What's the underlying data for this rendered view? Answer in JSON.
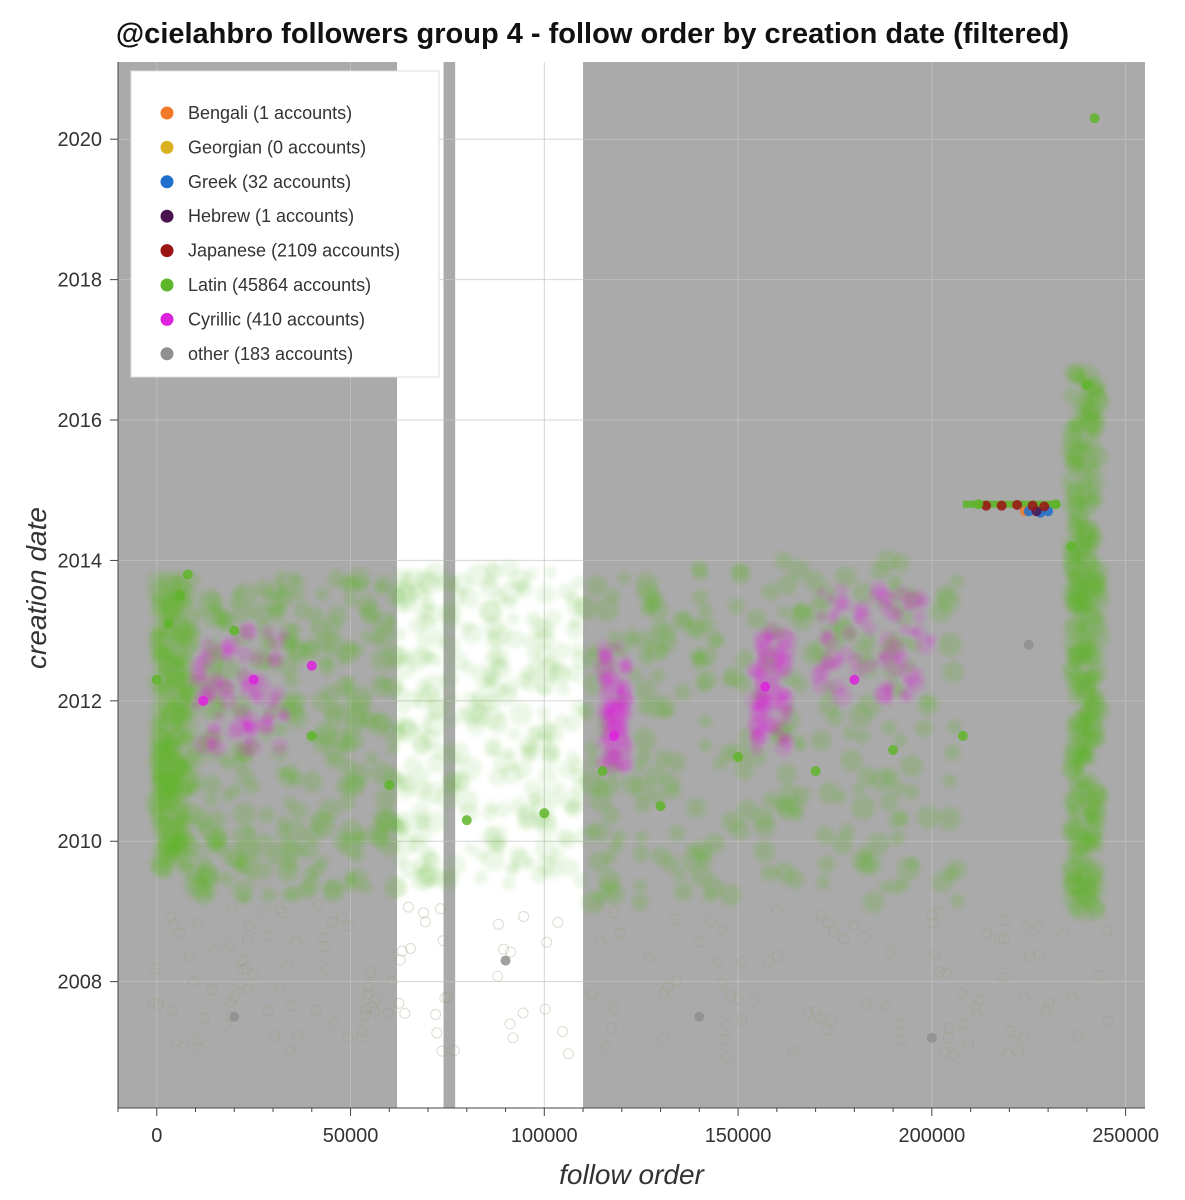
{
  "chart_data": {
    "type": "scatter",
    "title": "@cielahbro followers group 4 - follow order by creation date (filtered)",
    "xlabel": "follow order",
    "ylabel": "creation date",
    "xlim": [
      -10000,
      255000
    ],
    "ylim": [
      2006.2,
      2021.1
    ],
    "x_ticks": [
      0,
      50000,
      100000,
      150000,
      200000,
      250000
    ],
    "y_ticks": [
      2008,
      2010,
      2012,
      2014,
      2016,
      2018,
      2020
    ],
    "grid": true,
    "legend_position": "top-left",
    "background_color": "#aaaaaa",
    "white_bands": [
      [
        62000,
        74000
      ],
      [
        77000,
        110000
      ]
    ],
    "series": [
      {
        "name": "Bengali (1 accounts)",
        "color": "#f07a2a",
        "x": [
          224000
        ],
        "y": [
          2014.7
        ]
      },
      {
        "name": "Georgian (0 accounts)",
        "color": "#d9b11f",
        "x": [],
        "y": []
      },
      {
        "name": "Greek (32 accounts)",
        "color": "#1f6fcf",
        "x": [
          225000,
          228000,
          230000
        ],
        "y": [
          2014.7,
          2014.68,
          2014.7
        ]
      },
      {
        "name": "Hebrew (1 accounts)",
        "color": "#4a1350",
        "x": [
          227000
        ],
        "y": [
          2014.7
        ]
      },
      {
        "name": "Japanese (2109 accounts)",
        "color": "#9b1414",
        "x": [
          214000,
          218000,
          222000,
          226000,
          229000
        ],
        "y": [
          2014.78,
          2014.78,
          2014.79,
          2014.78,
          2014.77
        ]
      },
      {
        "name": "Latin (45864 accounts)",
        "color": "#5fb52a",
        "x": [
          0,
          3000,
          6000,
          8000,
          20000,
          40000,
          60000,
          80000,
          100000,
          115000,
          130000,
          150000,
          170000,
          190000,
          208000,
          212000,
          232000,
          236000,
          240000,
          242000
        ],
        "y": [
          2012.3,
          2013.1,
          2013.5,
          2013.8,
          2013.0,
          2011.5,
          2010.8,
          2010.3,
          2010.4,
          2011.0,
          2010.5,
          2011.2,
          2011.0,
          2011.3,
          2011.5,
          2014.8,
          2014.8,
          2014.2,
          2016.5,
          2020.3
        ]
      },
      {
        "name": "Cyrillic (410 accounts)",
        "color": "#dd22dd",
        "x": [
          12000,
          25000,
          40000,
          118000,
          157000,
          180000
        ],
        "y": [
          2012.0,
          2012.3,
          2012.5,
          2011.5,
          2012.2,
          2012.3
        ]
      },
      {
        "name": "other (183 accounts)",
        "color": "#8f8f8f",
        "x": [
          20000,
          90000,
          140000,
          200000,
          225000
        ],
        "y": [
          2007.5,
          2008.3,
          2007.5,
          2007.2,
          2012.8
        ]
      }
    ]
  }
}
